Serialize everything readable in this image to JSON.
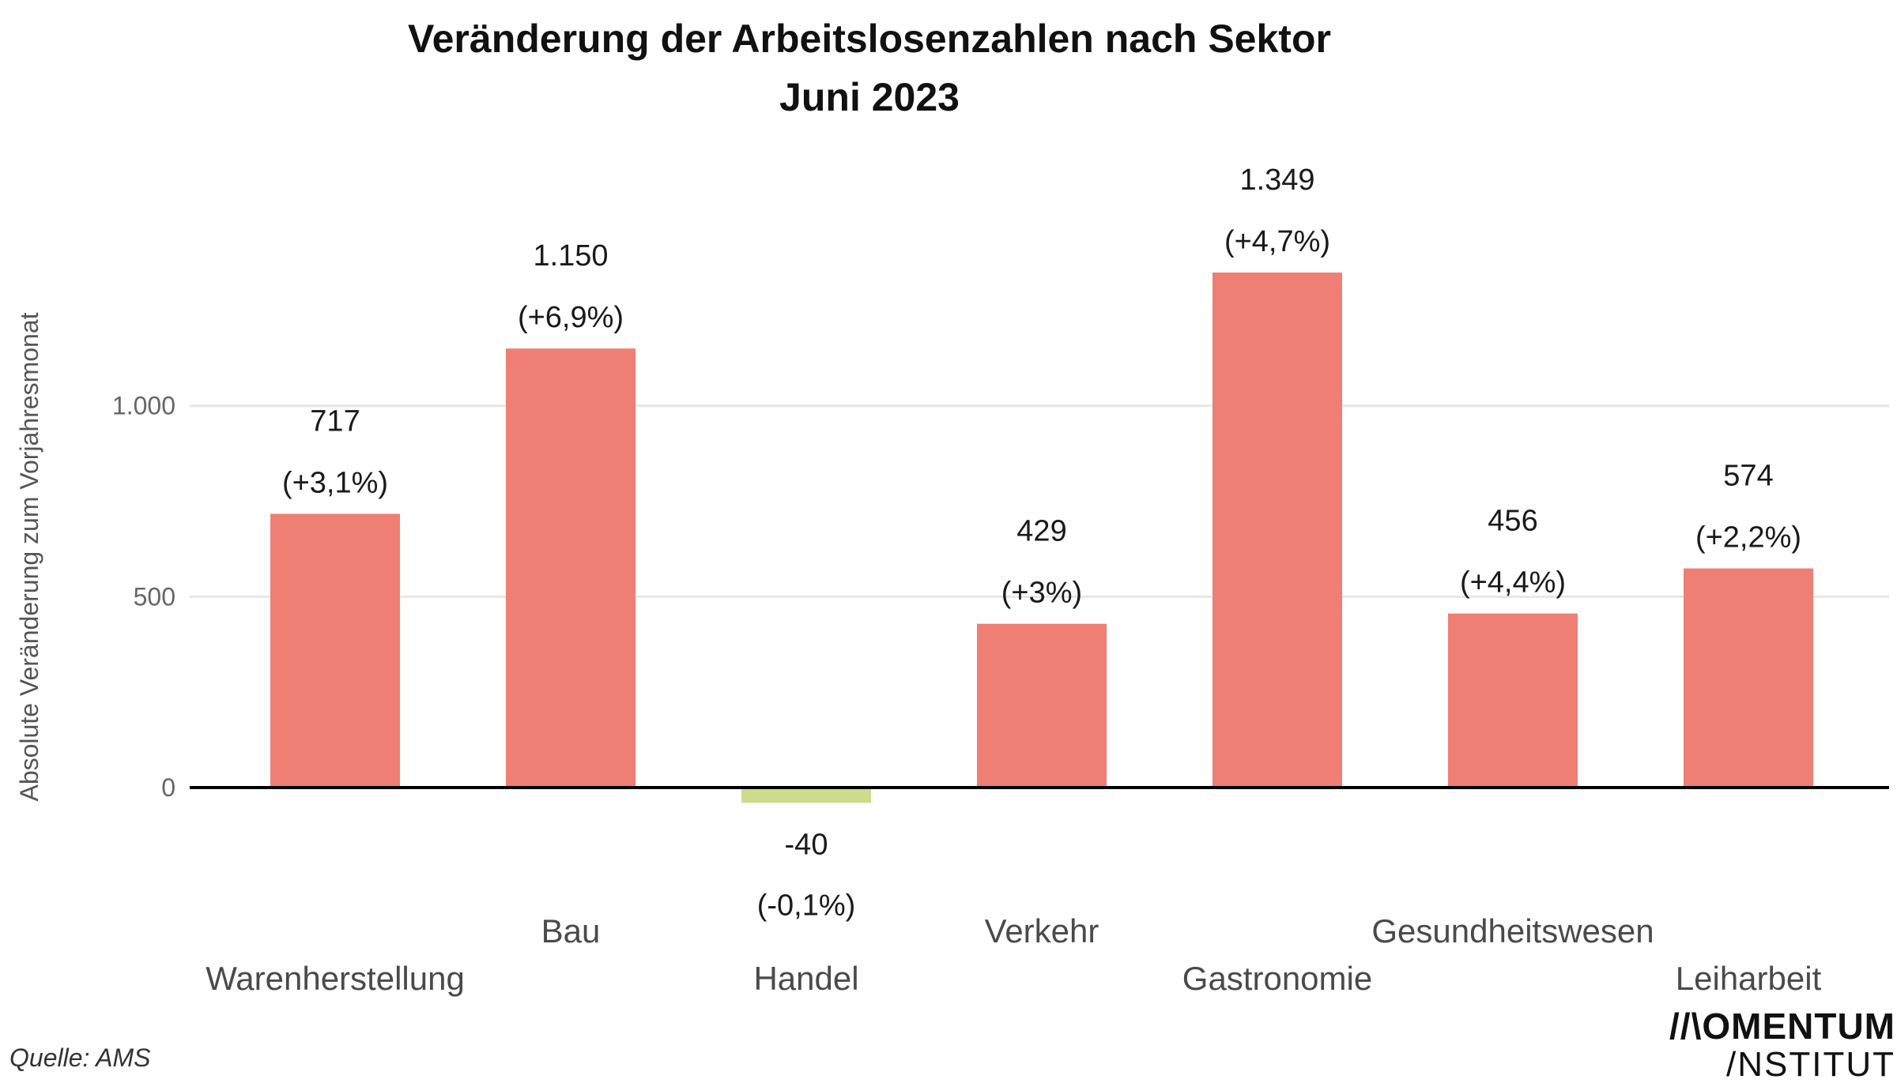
{
  "chart_data": {
    "type": "bar",
    "title": "Veränderung der Arbeitslosenzahlen nach Sektor",
    "subtitle": "Juni 2023",
    "xlabel": "",
    "ylabel": "Absolute Veränderung zum Vorjahresmonat",
    "ylim": [
      -100,
      1400
    ],
    "yticks": [
      {
        "value": 0,
        "label": "0"
      },
      {
        "value": 500,
        "label": "500"
      },
      {
        "value": 1000,
        "label": "1.000"
      }
    ],
    "grid": true,
    "categories": [
      "Warenherstellung",
      "Bau",
      "Handel",
      "Verkehr",
      "Gastronomie",
      "Gesundheitswesen",
      "Leiharbeit"
    ],
    "values": [
      717,
      1150,
      -40,
      429,
      1349,
      456,
      574
    ],
    "value_labels": [
      "717",
      "1.150",
      "-40",
      "429",
      "1.349",
      "456",
      "574"
    ],
    "percent_labels": [
      "(+3,1%)",
      "(+6,9%)",
      "(-0,1%)",
      "(+3%)",
      "(+4,7%)",
      "(+4,4%)",
      "(+2,2%)"
    ],
    "colors": {
      "positive": "#ef7e74",
      "negative": "#cddb8c",
      "zero_line": "#000000",
      "grid": "#e6e6e6"
    }
  },
  "source": "Quelle: AMS",
  "logo": {
    "line1": "//\\OMENTUM",
    "line2": "/NSTITUT"
  }
}
